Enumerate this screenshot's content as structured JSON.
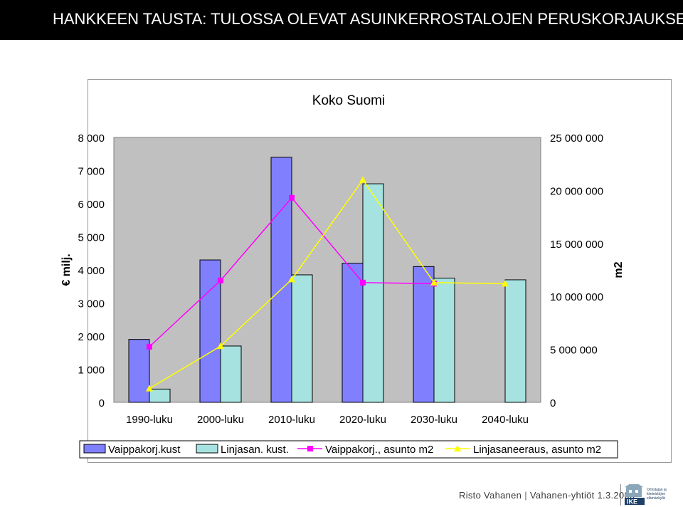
{
  "slide": {
    "title": "HANKKEEN TAUSTA: TULOSSA OLEVAT ASUINKERROSTALOJEN PERUSKORJAUKSET"
  },
  "footer": {
    "author": "Risto Vahanen",
    "org": "Vahanen-yhtiöt",
    "date": "1.3.2005",
    "logo_text": "IKE",
    "logo_lines": [
      "Omistajan ja",
      "kiinteistöjen",
      "elämänkylki"
    ]
  },
  "colors": {
    "plot_bg": "#c0c0c0",
    "bar1": "#8080ff",
    "bar2": "#a6e3e0",
    "line1": "#ff00ff",
    "line2": "#ffff00"
  },
  "chart_data": {
    "type": "bar",
    "title": "Koko Suomi",
    "ylabel": "€ milj.",
    "y2label": "m2",
    "categories": [
      "1990-luku",
      "2000-luku",
      "2010-luku",
      "2020-luku",
      "2030-luku",
      "2040-luku"
    ],
    "ylim": [
      0,
      8000
    ],
    "y_ticks": [
      0,
      1000,
      2000,
      3000,
      4000,
      5000,
      6000,
      7000,
      8000
    ],
    "y_tick_labels": [
      "0",
      "1 000",
      "2 000",
      "3 000",
      "4 000",
      "5 000",
      "6 000",
      "7 000",
      "8 000"
    ],
    "y2lim": [
      0,
      25000000
    ],
    "y2_ticks": [
      0,
      5000000,
      10000000,
      15000000,
      20000000,
      25000000
    ],
    "y2_tick_labels": [
      "0",
      "5 000 000",
      "10 000 000",
      "15 000 000",
      "20 000 000",
      "25 000 000"
    ],
    "grid": false,
    "legend_position": "bottom",
    "series": [
      {
        "name": "Vaippakorj.kust",
        "kind": "bar",
        "axis": "left",
        "values": [
          1900,
          4300,
          7400,
          4200,
          4100,
          0
        ]
      },
      {
        "name": "Linjasan. kust.",
        "kind": "bar",
        "axis": "left",
        "values": [
          400,
          1700,
          3850,
          6600,
          3750,
          3700
        ]
      },
      {
        "name": "Vaippakorj., asunto m2",
        "kind": "line",
        "axis": "right",
        "marker": "square",
        "values": [
          5250000,
          11500000,
          19300000,
          11300000,
          11200000,
          null
        ]
      },
      {
        "name": "Linjasaneeraus, asunto m2",
        "kind": "line",
        "axis": "right",
        "marker": "triangle",
        "values": [
          1300000,
          5300000,
          11600000,
          21000000,
          11300000,
          11200000
        ]
      }
    ]
  }
}
